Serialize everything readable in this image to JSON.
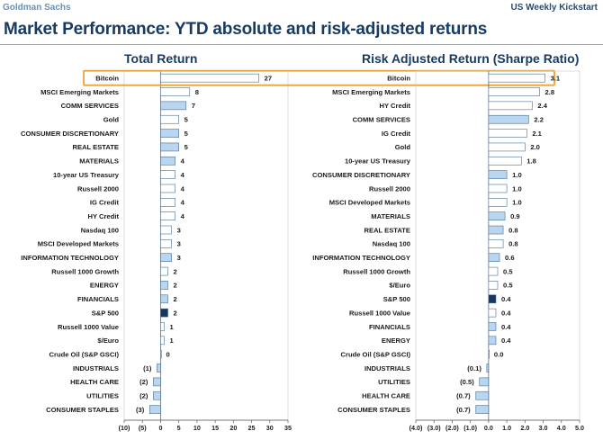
{
  "header": {
    "brand": "Goldman Sachs",
    "report": "US Weekly Kickstart"
  },
  "page_title": "Market Performance: YTD absolute and risk-adjusted returns",
  "colors": {
    "bar_fill_default": "#ffffff",
    "bar_fill_highlight": "#b9d6f0",
    "bar_fill_sp500": "#17375e",
    "bar_stroke": "#4b6e91",
    "highlight_box": "#e8a33a",
    "title_color": "#173b63"
  },
  "chart_data": [
    {
      "type": "bar",
      "orientation": "horizontal",
      "title": "Total Return",
      "xlim": [
        -10,
        35
      ],
      "xticks": [
        -10,
        -5,
        0,
        5,
        10,
        15,
        20,
        25,
        30,
        35
      ],
      "xtick_labels": [
        "(10)",
        "(5)",
        "0",
        "5",
        "10",
        "15",
        "20",
        "25",
        "30",
        "35"
      ],
      "highlight_category": "Bitcoin",
      "bars": [
        {
          "category": "Bitcoin",
          "value": 27,
          "label": "27",
          "style": "default"
        },
        {
          "category": "MSCI Emerging Markets",
          "value": 8,
          "label": "8",
          "style": "default"
        },
        {
          "category": "COMM SERVICES",
          "value": 7,
          "label": "7",
          "style": "highlight"
        },
        {
          "category": "Gold",
          "value": 5,
          "label": "5",
          "style": "default"
        },
        {
          "category": "CONSUMER DISCRETIONARY",
          "value": 5,
          "label": "5",
          "style": "highlight"
        },
        {
          "category": "REAL ESTATE",
          "value": 5,
          "label": "5",
          "style": "highlight"
        },
        {
          "category": "MATERIALS",
          "value": 4,
          "label": "4",
          "style": "highlight"
        },
        {
          "category": "10-year US Treasury",
          "value": 4,
          "label": "4",
          "style": "default"
        },
        {
          "category": "Russell 2000",
          "value": 4,
          "label": "4",
          "style": "default"
        },
        {
          "category": "IG Credit",
          "value": 4,
          "label": "4",
          "style": "default"
        },
        {
          "category": "HY Credit",
          "value": 4,
          "label": "4",
          "style": "default"
        },
        {
          "category": "Nasdaq 100",
          "value": 3,
          "label": "3",
          "style": "default"
        },
        {
          "category": "MSCI Developed Markets",
          "value": 3,
          "label": "3",
          "style": "default"
        },
        {
          "category": "INFORMATION TECHNOLOGY",
          "value": 3,
          "label": "3",
          "style": "highlight"
        },
        {
          "category": "Russell 1000 Growth",
          "value": 2,
          "label": "2",
          "style": "default"
        },
        {
          "category": "ENERGY",
          "value": 2,
          "label": "2",
          "style": "highlight"
        },
        {
          "category": "FINANCIALS",
          "value": 2,
          "label": "2",
          "style": "highlight"
        },
        {
          "category": "S&P 500",
          "value": 2,
          "label": "2",
          "style": "sp500"
        },
        {
          "category": "Russell 1000 Value",
          "value": 1,
          "label": "1",
          "style": "default"
        },
        {
          "category": "$/Euro",
          "value": 1,
          "label": "1",
          "style": "default"
        },
        {
          "category": "Crude Oil (S&P GSCI)",
          "value": 0,
          "label": "0",
          "style": "default"
        },
        {
          "category": "INDUSTRIALS",
          "value": -1,
          "label": "(1)",
          "style": "highlight"
        },
        {
          "category": "HEALTH CARE",
          "value": -2,
          "label": "(2)",
          "style": "highlight"
        },
        {
          "category": "UTILITIES",
          "value": -2,
          "label": "(2)",
          "style": "highlight"
        },
        {
          "category": "CONSUMER STAPLES",
          "value": -3,
          "label": "(3)",
          "style": "highlight"
        }
      ]
    },
    {
      "type": "bar",
      "orientation": "horizontal",
      "title": "Risk Adjusted Return (Sharpe Ratio)",
      "xlim": [
        -4,
        5
      ],
      "xticks": [
        -4,
        -3,
        -2,
        -1,
        0,
        1,
        2,
        3,
        4,
        5
      ],
      "xtick_labels": [
        "(4.0)",
        "(3.0)",
        "(2.0)",
        "(1.0)",
        "0.0",
        "1.0",
        "2.0",
        "3.0",
        "4.0",
        "5.0"
      ],
      "highlight_category": "Bitcoin",
      "bars": [
        {
          "category": "Bitcoin",
          "value": 3.1,
          "label": "3.1",
          "style": "default"
        },
        {
          "category": "MSCI Emerging Markets",
          "value": 2.8,
          "label": "2.8",
          "style": "default"
        },
        {
          "category": "HY Credit",
          "value": 2.4,
          "label": "2.4",
          "style": "default"
        },
        {
          "category": "COMM SERVICES",
          "value": 2.2,
          "label": "2.2",
          "style": "highlight"
        },
        {
          "category": "IG Credit",
          "value": 2.1,
          "label": "2.1",
          "style": "default"
        },
        {
          "category": "Gold",
          "value": 2.0,
          "label": "2.0",
          "style": "default"
        },
        {
          "category": "10-year US Treasury",
          "value": 1.8,
          "label": "1.8",
          "style": "default"
        },
        {
          "category": "CONSUMER DISCRETIONARY",
          "value": 1.0,
          "label": "1.0",
          "style": "highlight"
        },
        {
          "category": "Russell 2000",
          "value": 1.0,
          "label": "1.0",
          "style": "default"
        },
        {
          "category": "MSCI Developed Markets",
          "value": 1.0,
          "label": "1.0",
          "style": "default"
        },
        {
          "category": "MATERIALS",
          "value": 0.9,
          "label": "0.9",
          "style": "highlight"
        },
        {
          "category": "REAL ESTATE",
          "value": 0.8,
          "label": "0.8",
          "style": "highlight"
        },
        {
          "category": "Nasdaq 100",
          "value": 0.8,
          "label": "0.8",
          "style": "default"
        },
        {
          "category": "INFORMATION TECHNOLOGY",
          "value": 0.6,
          "label": "0.6",
          "style": "highlight"
        },
        {
          "category": "Russell 1000 Growth",
          "value": 0.5,
          "label": "0.5",
          "style": "default"
        },
        {
          "category": "$/Euro",
          "value": 0.5,
          "label": "0.5",
          "style": "default"
        },
        {
          "category": "S&P 500",
          "value": 0.4,
          "label": "0.4",
          "style": "sp500"
        },
        {
          "category": "Russell 1000 Value",
          "value": 0.4,
          "label": "0.4",
          "style": "default"
        },
        {
          "category": "FINANCIALS",
          "value": 0.4,
          "label": "0.4",
          "style": "highlight"
        },
        {
          "category": "ENERGY",
          "value": 0.4,
          "label": "0.4",
          "style": "highlight"
        },
        {
          "category": "Crude Oil (S&P GSCI)",
          "value": 0.0,
          "label": "0.0",
          "style": "default"
        },
        {
          "category": "INDUSTRIALS",
          "value": -0.1,
          "label": "(0.1)",
          "style": "highlight"
        },
        {
          "category": "UTILITIES",
          "value": -0.5,
          "label": "(0.5)",
          "style": "highlight"
        },
        {
          "category": "HEALTH CARE",
          "value": -0.7,
          "label": "(0.7)",
          "style": "highlight"
        },
        {
          "category": "CONSUMER STAPLES",
          "value": -0.7,
          "label": "(0.7)",
          "style": "highlight"
        }
      ]
    }
  ]
}
